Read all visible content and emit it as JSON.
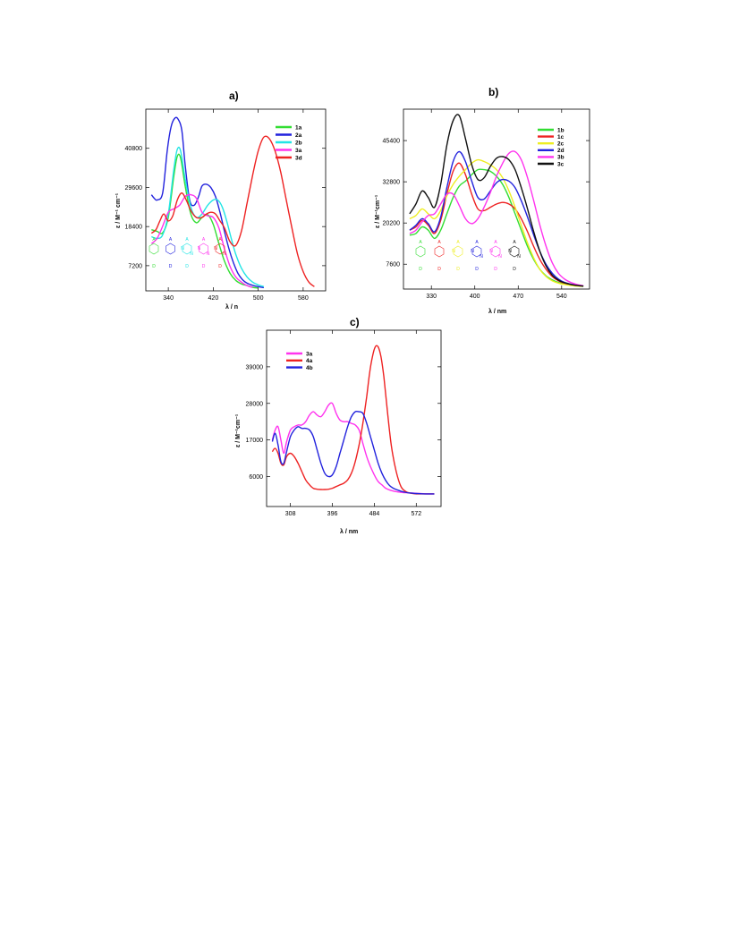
{
  "figure": {
    "panels": [
      {
        "id": "a",
        "label": "a)"
      },
      {
        "id": "b",
        "label": "b)"
      },
      {
        "id": "c",
        "label": "c)"
      }
    ]
  },
  "chart_data": [
    {
      "panel": "a)",
      "type": "line",
      "title": "a)",
      "xlabel": "λ / n",
      "ylabel": "ε / M⁻¹ cm⁻¹",
      "xlim": [
        300,
        620
      ],
      "ylim": [
        0,
        52000
      ],
      "xticks": [
        340,
        420,
        500,
        580
      ],
      "yticks": [
        7200,
        18400,
        29600,
        40800
      ],
      "grid": false,
      "legend": "top-right",
      "series": [
        {
          "name": "1a",
          "color": "#33dd33",
          "x": [
            310,
            320,
            330,
            340,
            350,
            356,
            362,
            370,
            380,
            390,
            400,
            410,
            420,
            430,
            440,
            450,
            460,
            470,
            480,
            490,
            500
          ],
          "y": [
            17500,
            17000,
            16600,
            21000,
            33000,
            38500,
            38000,
            30000,
            22000,
            19500,
            21000,
            21800,
            19000,
            13500,
            8500,
            5000,
            3000,
            2000,
            1500,
            1000,
            800
          ]
        },
        {
          "name": "2a",
          "color": "#2222dd",
          "x": [
            310,
            315,
            320,
            330,
            338,
            345,
            352,
            358,
            364,
            370,
            378,
            386,
            394,
            400,
            408,
            416,
            424,
            432,
            440,
            448,
            456,
            464,
            472,
            480,
            490,
            500,
            510
          ],
          "y": [
            27500,
            26500,
            26000,
            28000,
            40000,
            47000,
            49500,
            49000,
            46000,
            36000,
            26000,
            24500,
            27000,
            30000,
            30500,
            29500,
            27000,
            22500,
            17000,
            12000,
            8000,
            5000,
            3200,
            2200,
            1600,
            1200,
            900
          ]
        },
        {
          "name": "2b",
          "color": "#22e5e5",
          "x": [
            310,
            320,
            330,
            340,
            350,
            356,
            362,
            370,
            380,
            390,
            400,
            410,
            420,
            428,
            436,
            444,
            452,
            460,
            470,
            480,
            490,
            500,
            510
          ],
          "y": [
            15500,
            15000,
            16000,
            22000,
            35000,
            40500,
            40000,
            32000,
            24000,
            21000,
            22000,
            24500,
            26000,
            26000,
            24000,
            20000,
            15000,
            10500,
            6500,
            4000,
            2500,
            1700,
            1200
          ]
        },
        {
          "name": "3a",
          "color": "#ff33ee",
          "x": [
            310,
            320,
            330,
            340,
            350,
            360,
            370,
            380,
            390,
            400,
            410,
            420,
            430,
            440,
            450,
            460,
            470,
            480,
            490
          ],
          "y": [
            13500,
            15000,
            18500,
            22500,
            23500,
            24500,
            27000,
            27500,
            26500,
            22500,
            21500,
            21000,
            18000,
            12000,
            7000,
            4000,
            2500,
            1500,
            1000
          ]
        },
        {
          "name": "3d",
          "color": "#ee2222",
          "x": [
            310,
            318,
            325,
            332,
            340,
            348,
            356,
            364,
            372,
            380,
            390,
            400,
            408,
            416,
            424,
            432,
            440,
            450,
            460,
            470,
            480,
            490,
            500,
            510,
            520,
            530,
            540,
            550,
            560,
            570,
            580,
            590,
            600
          ],
          "y": [
            16500,
            17500,
            20000,
            22000,
            20000,
            21500,
            26000,
            28000,
            26000,
            23000,
            21000,
            21000,
            22000,
            22500,
            22000,
            20000,
            18000,
            14000,
            13000,
            17000,
            25000,
            33000,
            40000,
            44000,
            43500,
            40000,
            34000,
            26000,
            18000,
            10500,
            5500,
            2500,
            1200
          ]
        }
      ],
      "structure_labels": [
        "A",
        "D",
        "A",
        "D",
        "A",
        "N",
        "N",
        "D",
        "A",
        "N",
        "N",
        "D",
        "A",
        "N",
        "N",
        "D"
      ]
    },
    {
      "panel": "b)",
      "type": "line",
      "title": "b)",
      "xlabel": "λ / nm",
      "ylabel": "ε / M⁻¹cm⁻¹",
      "xlim": [
        285,
        585
      ],
      "ylim": [
        0,
        55000
      ],
      "xticks": [
        330,
        400,
        470,
        540
      ],
      "yticks": [
        7600,
        20200,
        32800,
        45400
      ],
      "grid": false,
      "legend": "top-right",
      "series": [
        {
          "name": "1b",
          "color": "#33dd33",
          "x": [
            295,
            305,
            315,
            325,
            335,
            345,
            355,
            365,
            375,
            385,
            395,
            405,
            415,
            425,
            435,
            445,
            455,
            465,
            475,
            485,
            495,
            505,
            515,
            525,
            535,
            545,
            555,
            565,
            575
          ],
          "y": [
            16500,
            17000,
            19000,
            18000,
            15500,
            18000,
            23000,
            28000,
            31500,
            33000,
            35000,
            36500,
            36500,
            36000,
            34500,
            32000,
            28000,
            23000,
            18000,
            13000,
            9000,
            6000,
            4000,
            2800,
            2000,
            1600,
            1300,
            1100,
            900
          ]
        },
        {
          "name": "1c",
          "color": "#ee2222",
          "x": [
            295,
            305,
            315,
            325,
            335,
            345,
            355,
            365,
            375,
            385,
            395,
            405,
            415,
            425,
            435,
            445,
            455,
            465,
            475,
            485,
            495,
            505,
            515,
            525,
            535,
            545,
            555,
            565,
            575
          ],
          "y": [
            18000,
            19000,
            21000,
            19500,
            17000,
            21000,
            29000,
            36000,
            38500,
            35000,
            29000,
            24500,
            24000,
            25000,
            26000,
            26500,
            26000,
            24500,
            21500,
            17500,
            13000,
            9000,
            6000,
            3800,
            2500,
            1800,
            1400,
            1100,
            900
          ]
        },
        {
          "name": "2c",
          "color": "#eeee22",
          "x": [
            295,
            305,
            315,
            325,
            335,
            345,
            355,
            365,
            375,
            385,
            395,
            405,
            415,
            425,
            435,
            445,
            455,
            465,
            475,
            485,
            495,
            505,
            515,
            525,
            535,
            545,
            555,
            565,
            575
          ],
          "y": [
            21500,
            22500,
            24500,
            23000,
            21500,
            24000,
            28500,
            32000,
            34500,
            36500,
            38500,
            39500,
            39000,
            38000,
            36500,
            34000,
            30000,
            25000,
            19500,
            14000,
            9500,
            6000,
            3800,
            2500,
            1800,
            1400,
            1100,
            900,
            800
          ]
        },
        {
          "name": "2d",
          "color": "#2222dd",
          "x": [
            295,
            305,
            315,
            325,
            335,
            345,
            355,
            365,
            375,
            385,
            395,
            405,
            415,
            425,
            435,
            445,
            455,
            465,
            475,
            485,
            495,
            505,
            515,
            525,
            535,
            545,
            555,
            565,
            575
          ],
          "y": [
            18000,
            19500,
            21500,
            20000,
            17500,
            22000,
            31000,
            39000,
            42000,
            39000,
            33000,
            28000,
            27500,
            30000,
            32500,
            33500,
            33000,
            31000,
            27000,
            22000,
            16500,
            11500,
            7500,
            4800,
            3000,
            2000,
            1500,
            1200,
            900
          ]
        },
        {
          "name": "3b",
          "color": "#ff33ee",
          "x": [
            295,
            305,
            315,
            325,
            335,
            345,
            355,
            365,
            375,
            385,
            395,
            405,
            415,
            425,
            435,
            445,
            455,
            465,
            475,
            485,
            495,
            505,
            515,
            525,
            535,
            545,
            555,
            565,
            575
          ],
          "y": [
            17000,
            18000,
            20500,
            22500,
            23000,
            26000,
            29000,
            29000,
            25500,
            21500,
            20000,
            21500,
            25000,
            29500,
            34500,
            38500,
            41500,
            42000,
            39500,
            34000,
            27000,
            19500,
            13000,
            8000,
            4800,
            3000,
            2000,
            1400,
            1000
          ]
        },
        {
          "name": "3c",
          "color": "#111111",
          "x": [
            295,
            305,
            315,
            325,
            335,
            345,
            355,
            365,
            375,
            385,
            395,
            405,
            415,
            425,
            435,
            445,
            455,
            465,
            475,
            485,
            495,
            505,
            515,
            525,
            535,
            545,
            555,
            565,
            575
          ],
          "y": [
            23000,
            26000,
            30000,
            28000,
            25000,
            32000,
            44000,
            51500,
            53000,
            46000,
            38000,
            33500,
            34000,
            37500,
            40000,
            40500,
            39500,
            36500,
            31000,
            24500,
            17500,
            11500,
            7000,
            4200,
            2700,
            1900,
            1400,
            1100,
            900
          ]
        }
      ],
      "structure_labels": [
        "A",
        "D",
        "A",
        "D",
        "A",
        "N",
        "D",
        "A",
        "N",
        "N",
        "D",
        "A",
        "N",
        "N",
        "D",
        "A",
        "N",
        "N",
        "D"
      ]
    },
    {
      "panel": "c)",
      "type": "line",
      "title": "c)",
      "xlabel": "λ / nm",
      "ylabel": "ε / M⁻¹cm⁻¹",
      "xlim": [
        258,
        624
      ],
      "ylim": [
        -3000,
        50000
      ],
      "xticks": [
        308,
        396,
        484,
        572
      ],
      "yticks": [
        6000,
        17000,
        28000,
        39000
      ],
      "grid": false,
      "legend": "top-left",
      "series": [
        {
          "name": "3a",
          "color": "#ff33ee",
          "x": [
            270,
            276,
            282,
            288,
            294,
            300,
            308,
            316,
            324,
            332,
            340,
            348,
            356,
            364,
            372,
            380,
            388,
            396,
            404,
            412,
            420,
            428,
            436,
            444,
            452,
            460,
            468,
            476,
            484,
            492,
            500,
            508,
            520,
            532,
            544,
            556,
            568,
            580,
            596,
            610
          ],
          "y": [
            17000,
            20000,
            21000,
            17000,
            13000,
            16500,
            20000,
            21000,
            21500,
            21500,
            22500,
            24500,
            25500,
            24500,
            24000,
            25500,
            27500,
            28000,
            25000,
            23000,
            22500,
            22500,
            22000,
            21500,
            20000,
            16000,
            12000,
            9000,
            6500,
            4500,
            3500,
            2500,
            1800,
            1400,
            1200,
            1100,
            1000,
            900,
            800,
            800
          ]
        },
        {
          "name": "4a",
          "color": "#ee2222",
          "x": [
            270,
            276,
            282,
            288,
            294,
            300,
            308,
            316,
            324,
            332,
            340,
            348,
            356,
            364,
            372,
            380,
            388,
            396,
            404,
            412,
            420,
            428,
            436,
            444,
            452,
            460,
            468,
            474,
            480,
            486,
            492,
            498,
            504,
            512,
            520,
            530,
            540,
            550,
            560,
            572,
            590,
            610
          ],
          "y": [
            13500,
            14500,
            13000,
            10000,
            9500,
            12000,
            13000,
            12000,
            10000,
            7500,
            5000,
            3500,
            2500,
            2200,
            2100,
            2100,
            2200,
            2500,
            3000,
            3500,
            4000,
            5000,
            7000,
            10500,
            15500,
            22000,
            30000,
            37000,
            42000,
            45000,
            45000,
            42000,
            36000,
            25000,
            15000,
            7500,
            3000,
            1500,
            1000,
            800,
            800,
            800
          ]
        },
        {
          "name": "4b",
          "color": "#2222dd",
          "x": [
            270,
            276,
            282,
            288,
            294,
            300,
            308,
            316,
            324,
            332,
            340,
            348,
            356,
            364,
            372,
            380,
            388,
            396,
            404,
            412,
            420,
            428,
            436,
            444,
            452,
            460,
            468,
            476,
            484,
            492,
            500,
            508,
            516,
            524,
            532,
            540,
            548,
            556,
            564,
            572,
            590,
            610
          ],
          "y": [
            16500,
            19000,
            15500,
            10500,
            10000,
            13500,
            18000,
            20000,
            21000,
            20500,
            20500,
            20000,
            18000,
            14000,
            10000,
            7000,
            6000,
            6500,
            9000,
            13000,
            17000,
            21000,
            24000,
            25500,
            25500,
            25000,
            22000,
            18000,
            14000,
            10000,
            7000,
            4800,
            3300,
            2500,
            2000,
            1600,
            1300,
            1100,
            1000,
            900,
            800,
            800
          ]
        }
      ]
    }
  ]
}
